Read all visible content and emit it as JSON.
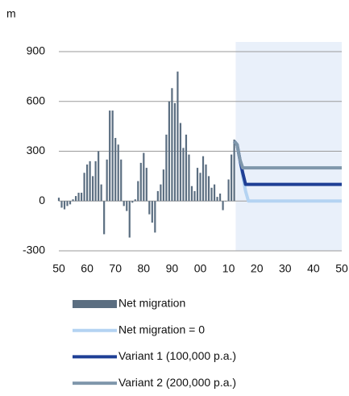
{
  "chart_data": {
    "type": "bar_line",
    "unit_label": "m",
    "xlim": [
      1950,
      2050
    ],
    "xticks": [
      {
        "value": 1950,
        "label": "50"
      },
      {
        "value": 1960,
        "label": "60"
      },
      {
        "value": 1970,
        "label": "70"
      },
      {
        "value": 1980,
        "label": "80"
      },
      {
        "value": 1990,
        "label": "90"
      },
      {
        "value": 2000,
        "label": "00"
      },
      {
        "value": 2010,
        "label": "10"
      },
      {
        "value": 2020,
        "label": "20"
      },
      {
        "value": 2030,
        "label": "30"
      },
      {
        "value": 2040,
        "label": "40"
      },
      {
        "value": 2050,
        "label": "50"
      }
    ],
    "ylim": [
      -300,
      900
    ],
    "yticks": [
      -300,
      0,
      300,
      600,
      900
    ],
    "grid": true,
    "projection_shade": {
      "xlim": [
        2012.5,
        2050
      ],
      "color": "#e9f0fa"
    },
    "series": [
      {
        "name": "Net migration",
        "type": "bar",
        "color": "#5b6e81",
        "x": [
          1950,
          1951,
          1952,
          1953,
          1954,
          1955,
          1956,
          1957,
          1958,
          1959,
          1960,
          1961,
          1962,
          1963,
          1964,
          1965,
          1966,
          1967,
          1968,
          1969,
          1970,
          1971,
          1972,
          1973,
          1974,
          1975,
          1976,
          1977,
          1978,
          1979,
          1980,
          1981,
          1982,
          1983,
          1984,
          1985,
          1986,
          1987,
          1988,
          1989,
          1990,
          1991,
          1992,
          1993,
          1994,
          1995,
          1996,
          1997,
          1998,
          1999,
          2000,
          2001,
          2002,
          2003,
          2004,
          2005,
          2006,
          2007,
          2008,
          2009,
          2010,
          2011,
          2012
        ],
        "values": [
          20,
          -40,
          -50,
          -30,
          -20,
          10,
          30,
          50,
          50,
          170,
          220,
          240,
          150,
          240,
          300,
          100,
          -200,
          250,
          545,
          545,
          380,
          340,
          250,
          -30,
          -60,
          -220,
          -10,
          10,
          120,
          230,
          290,
          200,
          -80,
          -130,
          -190,
          60,
          100,
          190,
          400,
          600,
          680,
          590,
          780,
          470,
          320,
          400,
          280,
          90,
          60,
          200,
          170,
          270,
          220,
          150,
          80,
          100,
          25,
          45,
          -55,
          0,
          130,
          280,
          370
        ]
      },
      {
        "name": "Net migration = 0",
        "type": "line",
        "color": "#b4d3f2",
        "x": [
          2012,
          2013,
          2014,
          2015,
          2016,
          2017,
          2050
        ],
        "values": [
          360,
          340,
          250,
          150,
          60,
          0,
          0
        ]
      },
      {
        "name": "Variant 1 (100,000 p.a.)",
        "type": "line",
        "color": "#1f3f95",
        "x": [
          2012,
          2013,
          2014,
          2015,
          2016,
          2017,
          2050
        ],
        "values": [
          360,
          340,
          250,
          170,
          100,
          100,
          100
        ]
      },
      {
        "name": "Variant 2 (200,000 p.a.)",
        "type": "line",
        "color": "#7f97ab",
        "x": [
          2012,
          2013,
          2014,
          2015,
          2016,
          2017,
          2050
        ],
        "values": [
          360,
          340,
          250,
          200,
          200,
          200,
          200
        ]
      }
    ]
  }
}
